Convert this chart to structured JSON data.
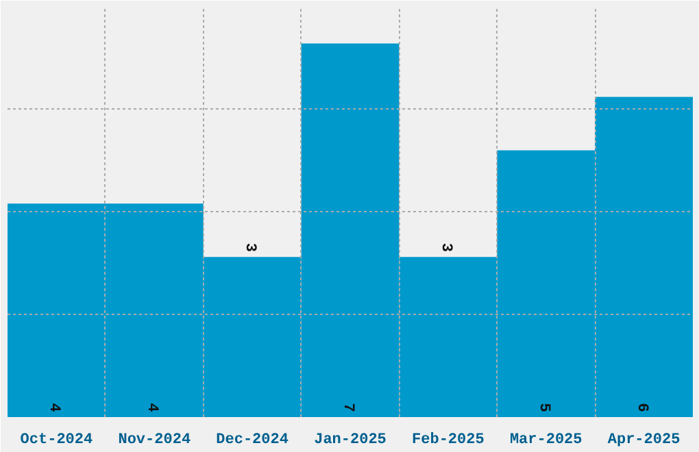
{
  "chart_data": {
    "type": "bar",
    "categories": [
      "Oct-2024",
      "Nov-2024",
      "Dec-2024",
      "Jan-2025",
      "Feb-2025",
      "Mar-2025",
      "Apr-2025"
    ],
    "values": [
      4,
      4,
      3,
      7,
      3,
      5,
      6
    ],
    "color": "#0099cc",
    "data_labels": true,
    "ylim": [
      0,
      7.7
    ],
    "yticks": [
      {
        "value": 1.93,
        "label": null
      },
      {
        "value": 3.86,
        "label": null
      },
      {
        "value": 5.78,
        "label": null
      }
    ],
    "grid": true,
    "tick_labels": "x"
  }
}
